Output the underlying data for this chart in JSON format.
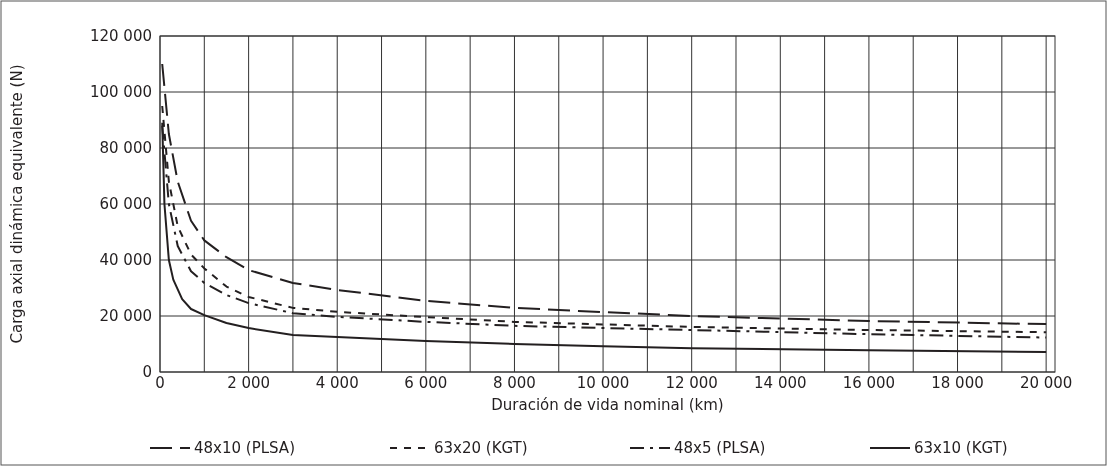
{
  "chart_data": {
    "type": "line",
    "xlabel": "Duración de vida nominal (km)",
    "ylabel": "Carga axial dinámica equivalente (N)",
    "xlim": [
      0,
      20200
    ],
    "ylim": [
      0,
      120000
    ],
    "xticks": [
      0,
      {
        "value": 1000,
        "label": null
      },
      {
        "value": 2000,
        "label": "2 000"
      },
      {
        "value": 3000,
        "label": null
      },
      {
        "value": 4000,
        "label": "4 000"
      },
      {
        "value": 5000,
        "label": null
      },
      {
        "value": 6000,
        "label": "6 000"
      },
      {
        "value": 7000,
        "label": null
      },
      {
        "value": 8000,
        "label": "8 000"
      },
      {
        "value": 9000,
        "label": null
      },
      {
        "value": 10000,
        "label": "10 000"
      },
      {
        "value": 11000,
        "label": null
      },
      {
        "value": 12000,
        "label": "12 000"
      },
      {
        "value": 13000,
        "label": null
      },
      {
        "value": 14000,
        "label": "14 000"
      },
      {
        "value": 15000,
        "label": null
      },
      {
        "value": 16000,
        "label": "16 000"
      },
      {
        "value": 17000,
        "label": null
      },
      {
        "value": 18000,
        "label": "18 000"
      },
      {
        "value": 19000,
        "label": null
      },
      {
        "value": 20000,
        "label": "20 000"
      }
    ],
    "yticks": [
      0,
      {
        "value": 20000,
        "label": "20 000"
      },
      {
        "value": 40000,
        "label": "40 000"
      },
      {
        "value": 60000,
        "label": "60 000"
      },
      {
        "value": 80000,
        "label": "80 000"
      },
      {
        "value": 100000,
        "label": "100 000"
      },
      {
        "value": 120000,
        "label": "120 000"
      }
    ],
    "grid": true,
    "legend": "bottom",
    "series": [
      {
        "name": "48x10 (PLSA)",
        "color": "#231f20",
        "line_style": "longdash",
        "x": [
          50,
          200,
          400,
          700,
          1000,
          1500,
          2000,
          3000,
          4000,
          6000,
          8000,
          10000,
          12000,
          16000,
          20000
        ],
        "values": [
          110000,
          85000,
          68000,
          54000,
          47000,
          41000,
          36400,
          31800,
          29300,
          25400,
          22900,
          21400,
          20000,
          18200,
          17100
        ]
      },
      {
        "name": "63x20 (KGT)",
        "color": "#231f20",
        "line_style": "dashed",
        "x": [
          50,
          200,
          400,
          700,
          1000,
          1500,
          2000,
          3000,
          4000,
          6000,
          8000,
          10000,
          12000,
          16000,
          20000
        ],
        "values": [
          95000,
          68000,
          52000,
          42000,
          37000,
          30500,
          26800,
          22900,
          21500,
          19600,
          17900,
          17000,
          16100,
          15000,
          14200
        ]
      },
      {
        "name": "48x5 (PLSA)",
        "color": "#231f20",
        "line_style": "dashdot",
        "x": [
          50,
          200,
          400,
          700,
          1000,
          1500,
          2000,
          3000,
          4000,
          6000,
          8000,
          10000,
          12000,
          16000,
          20000
        ],
        "values": [
          88000,
          60000,
          45000,
          36000,
          31800,
          27500,
          24600,
          21000,
          19700,
          17900,
          16500,
          15700,
          15000,
          13500,
          12300
        ]
      },
      {
        "name": "63x10 (KGT)",
        "color": "#231f20",
        "line_style": "solid",
        "x": [
          50,
          100,
          200,
          300,
          500,
          700,
          1000,
          1500,
          2000,
          3000,
          4000,
          6000,
          8000,
          10000,
          12000,
          16000,
          20000
        ],
        "values": [
          89000,
          60000,
          40000,
          33000,
          26000,
          22500,
          20300,
          17500,
          15700,
          13200,
          12500,
          11100,
          10000,
          9200,
          8500,
          7800,
          7100
        ]
      }
    ]
  }
}
